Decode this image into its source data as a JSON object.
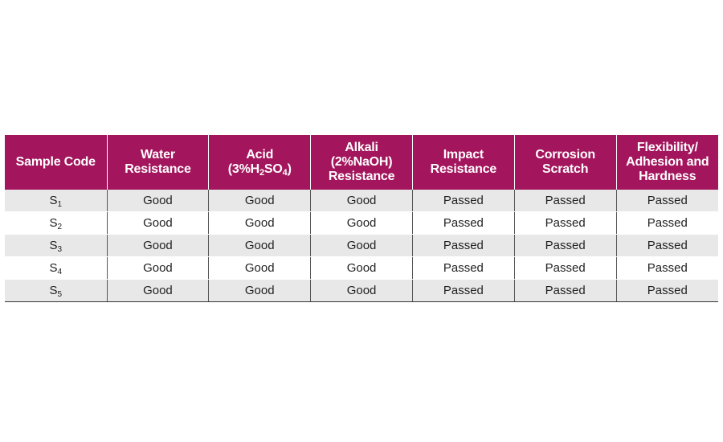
{
  "table": {
    "headers": [
      {
        "parts": [
          {
            "text": "Sample Code"
          }
        ]
      },
      {
        "lines": [
          [
            {
              "text": "Water"
            }
          ],
          [
            {
              "text": "Resistance"
            }
          ]
        ]
      },
      {
        "lines": [
          [
            {
              "text": "Acid"
            }
          ],
          [
            {
              "text": "(3%H"
            },
            {
              "sub": "2"
            },
            {
              "text": "SO"
            },
            {
              "sub": "4"
            },
            {
              "text": ")"
            }
          ]
        ]
      },
      {
        "lines": [
          [
            {
              "text": "Alkali"
            }
          ],
          [
            {
              "text": "(2%NaOH)"
            }
          ],
          [
            {
              "text": "Resistance"
            }
          ]
        ]
      },
      {
        "lines": [
          [
            {
              "text": "Impact"
            }
          ],
          [
            {
              "text": "Resistance"
            }
          ]
        ]
      },
      {
        "lines": [
          [
            {
              "text": "Corrosion"
            }
          ],
          [
            {
              "text": "Scratch"
            }
          ]
        ]
      },
      {
        "lines": [
          [
            {
              "text": "Flexibility/"
            }
          ],
          [
            {
              "text": "Adhesion and"
            }
          ],
          [
            {
              "text": "Hardness"
            }
          ]
        ]
      }
    ],
    "rows": [
      {
        "sample": "S",
        "sample_sub": "1",
        "cells": [
          "Good",
          "Good",
          "Good",
          "Passed",
          "Passed",
          "Passed"
        ]
      },
      {
        "sample": "S",
        "sample_sub": "2",
        "cells": [
          "Good",
          "Good",
          "Good",
          "Passed",
          "Passed",
          "Passed"
        ]
      },
      {
        "sample": "S",
        "sample_sub": "3",
        "cells": [
          "Good",
          "Good",
          "Good",
          "Passed",
          "Passed",
          "Passed"
        ]
      },
      {
        "sample": "S",
        "sample_sub": "4",
        "cells": [
          "Good",
          "Good",
          "Good",
          "Passed",
          "Passed",
          "Passed"
        ]
      },
      {
        "sample": "S",
        "sample_sub": "5",
        "cells": [
          "Good",
          "Good",
          "Good",
          "Passed",
          "Passed",
          "Passed"
        ]
      }
    ],
    "colors": {
      "header_bg": "#a3155c",
      "header_text": "#ffffff",
      "row_alt_bg": "#e8e8e9"
    }
  }
}
